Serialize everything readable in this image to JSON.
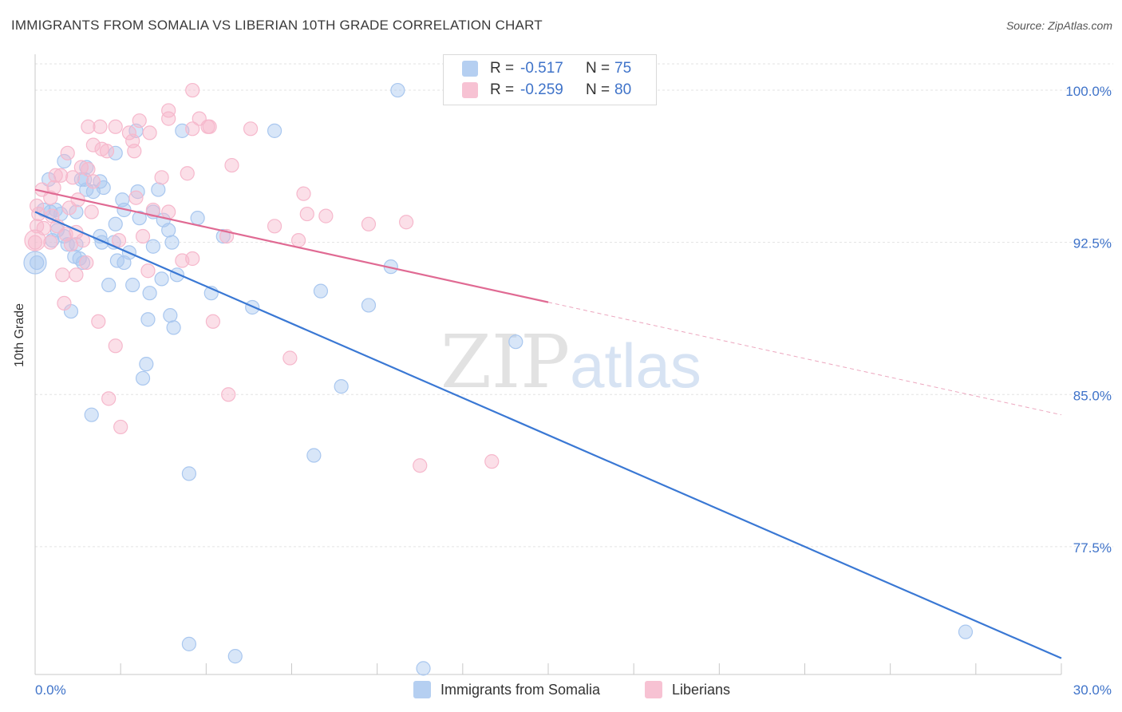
{
  "title": "IMMIGRANTS FROM SOMALIA VS LIBERIAN 10TH GRADE CORRELATION CHART",
  "source": "Source: ZipAtlas.com",
  "watermark": {
    "zip": "ZIP",
    "atlas": "atlas"
  },
  "legend": {
    "rows": [
      {
        "r_label": "R =",
        "r_value": "-0.517",
        "n_label": "N =",
        "n_value": "75",
        "color": "#a9c7ef"
      },
      {
        "r_label": "R =",
        "r_value": "-0.259",
        "n_label": "N =",
        "n_value": "80",
        "color": "#f6b8cc"
      }
    ]
  },
  "bottom_legend": [
    {
      "label": "Immigrants from Somalia",
      "color": "#a9c7ef"
    },
    {
      "label": "Liberians",
      "color": "#f6b8cc"
    }
  ],
  "chart_data": {
    "type": "scatter",
    "title": "IMMIGRANTS FROM SOMALIA VS LIBERIAN 10TH GRADE CORRELATION CHART",
    "xlabel": "",
    "ylabel": "10th Grade",
    "xlim": [
      0,
      30
    ],
    "ylim": [
      71.2,
      101.3
    ],
    "x_tick_labels": [
      "0.0%",
      "30.0%"
    ],
    "y_ticks": [
      77.5,
      85.0,
      92.5,
      100.0
    ],
    "y_tick_labels": [
      "77.5%",
      "85.0%",
      "92.5%",
      "100.0%"
    ],
    "grid": true,
    "series": [
      {
        "name": "Immigrants from Somalia",
        "color": "#3a78d4",
        "fill": "#a9c7ef",
        "r": -0.517,
        "n": 75,
        "trend": {
          "x0": 0.0,
          "y0": 94.0,
          "x1": 30.0,
          "y1": 72.0,
          "solid_until": 30.0
        },
        "points": [
          [
            10.6,
            100.0
          ],
          [
            7.0,
            98.0
          ],
          [
            2.95,
            98.0
          ],
          [
            4.3,
            98.0
          ],
          [
            2.35,
            96.9
          ],
          [
            0.85,
            96.5
          ],
          [
            1.5,
            96.2
          ],
          [
            0.4,
            95.6
          ],
          [
            1.35,
            95.6
          ],
          [
            1.45,
            95.6
          ],
          [
            1.9,
            95.5
          ],
          [
            1.5,
            95.1
          ],
          [
            1.7,
            95.0
          ],
          [
            2.0,
            95.2
          ],
          [
            3.0,
            95.0
          ],
          [
            3.6,
            95.1
          ],
          [
            2.55,
            94.6
          ],
          [
            0.25,
            94.1
          ],
          [
            0.45,
            94.0
          ],
          [
            0.6,
            94.1
          ],
          [
            0.75,
            93.9
          ],
          [
            1.2,
            94.0
          ],
          [
            2.6,
            94.1
          ],
          [
            3.45,
            94.0
          ],
          [
            3.05,
            93.7
          ],
          [
            3.75,
            93.6
          ],
          [
            4.75,
            93.7
          ],
          [
            2.35,
            93.4
          ],
          [
            0.65,
            93.1
          ],
          [
            0.85,
            92.8
          ],
          [
            1.9,
            92.8
          ],
          [
            3.9,
            93.1
          ],
          [
            5.5,
            92.8
          ],
          [
            0.5,
            92.6
          ],
          [
            0.95,
            92.4
          ],
          [
            1.2,
            92.4
          ],
          [
            1.95,
            92.5
          ],
          [
            2.3,
            92.5
          ],
          [
            4.0,
            92.5
          ],
          [
            2.75,
            92.0
          ],
          [
            1.15,
            91.8
          ],
          [
            1.3,
            91.7
          ],
          [
            1.4,
            91.5
          ],
          [
            2.4,
            91.6
          ],
          [
            2.6,
            91.5
          ],
          [
            3.45,
            92.3
          ],
          [
            0.05,
            91.5
          ],
          [
            10.4,
            91.3
          ],
          [
            4.15,
            90.9
          ],
          [
            3.7,
            90.7
          ],
          [
            2.15,
            90.4
          ],
          [
            2.85,
            90.4
          ],
          [
            5.15,
            90.0
          ],
          [
            8.35,
            90.1
          ],
          [
            3.35,
            90.0
          ],
          [
            6.35,
            89.3
          ],
          [
            9.75,
            89.4
          ],
          [
            1.05,
            89.1
          ],
          [
            3.3,
            88.7
          ],
          [
            3.95,
            88.9
          ],
          [
            4.05,
            88.3
          ],
          [
            14.05,
            87.6
          ],
          [
            3.25,
            86.5
          ],
          [
            3.15,
            85.8
          ],
          [
            8.95,
            85.4
          ],
          [
            1.65,
            84.0
          ],
          [
            8.15,
            82.0
          ],
          [
            4.5,
            81.1
          ],
          [
            4.5,
            72.7
          ],
          [
            5.85,
            72.1
          ],
          [
            11.35,
            71.5
          ],
          [
            27.2,
            73.3
          ]
        ]
      },
      {
        "name": "Liberians",
        "color": "#e06a93",
        "fill": "#f6b8cc",
        "r": -0.259,
        "n": 80,
        "trend": {
          "x0": 0.0,
          "y0": 95.1,
          "x1": 30.0,
          "y1": 84.0,
          "solid_until": 15.0
        },
        "points": [
          [
            4.6,
            100.0
          ],
          [
            3.9,
            99.0
          ],
          [
            4.8,
            98.6
          ],
          [
            3.9,
            98.6
          ],
          [
            3.05,
            98.5
          ],
          [
            1.55,
            98.2
          ],
          [
            1.9,
            98.2
          ],
          [
            2.35,
            98.2
          ],
          [
            5.05,
            98.2
          ],
          [
            5.1,
            98.2
          ],
          [
            6.3,
            98.1
          ],
          [
            2.75,
            97.9
          ],
          [
            3.35,
            97.9
          ],
          [
            2.85,
            97.5
          ],
          [
            4.6,
            98.1
          ],
          [
            1.7,
            97.3
          ],
          [
            1.95,
            97.1
          ],
          [
            2.1,
            97.0
          ],
          [
            2.9,
            97.0
          ],
          [
            0.95,
            96.9
          ],
          [
            5.75,
            96.3
          ],
          [
            1.35,
            96.2
          ],
          [
            1.55,
            96.1
          ],
          [
            0.6,
            95.8
          ],
          [
            0.75,
            95.8
          ],
          [
            1.1,
            95.7
          ],
          [
            3.7,
            95.7
          ],
          [
            4.45,
            95.9
          ],
          [
            1.7,
            95.5
          ],
          [
            0.55,
            95.2
          ],
          [
            0.2,
            95.1
          ],
          [
            0.45,
            94.7
          ],
          [
            1.25,
            94.6
          ],
          [
            2.95,
            94.7
          ],
          [
            7.85,
            94.9
          ],
          [
            1.0,
            94.2
          ],
          [
            0.05,
            94.3
          ],
          [
            0.1,
            93.9
          ],
          [
            0.5,
            93.8
          ],
          [
            1.65,
            94.0
          ],
          [
            3.45,
            94.1
          ],
          [
            3.9,
            94.0
          ],
          [
            7.95,
            93.9
          ],
          [
            8.5,
            93.8
          ],
          [
            7.0,
            93.3
          ],
          [
            9.75,
            93.4
          ],
          [
            10.85,
            93.5
          ],
          [
            0.05,
            93.3
          ],
          [
            0.25,
            93.2
          ],
          [
            0.65,
            93.3
          ],
          [
            0.9,
            92.9
          ],
          [
            1.2,
            93.0
          ],
          [
            3.15,
            92.8
          ],
          [
            5.6,
            92.8
          ],
          [
            7.7,
            92.6
          ],
          [
            0.0,
            92.5
          ],
          [
            0.45,
            92.5
          ],
          [
            1.05,
            92.4
          ],
          [
            1.4,
            92.6
          ],
          [
            2.45,
            92.6
          ],
          [
            1.5,
            91.5
          ],
          [
            4.3,
            91.6
          ],
          [
            4.6,
            91.7
          ],
          [
            3.3,
            91.1
          ],
          [
            0.8,
            90.9
          ],
          [
            1.2,
            90.9
          ],
          [
            0.85,
            89.5
          ],
          [
            1.85,
            88.6
          ],
          [
            5.2,
            88.6
          ],
          [
            2.35,
            87.4
          ],
          [
            7.45,
            86.8
          ],
          [
            5.65,
            85.0
          ],
          [
            2.15,
            84.8
          ],
          [
            2.5,
            83.4
          ],
          [
            11.25,
            81.5
          ],
          [
            13.35,
            81.7
          ]
        ]
      }
    ]
  }
}
